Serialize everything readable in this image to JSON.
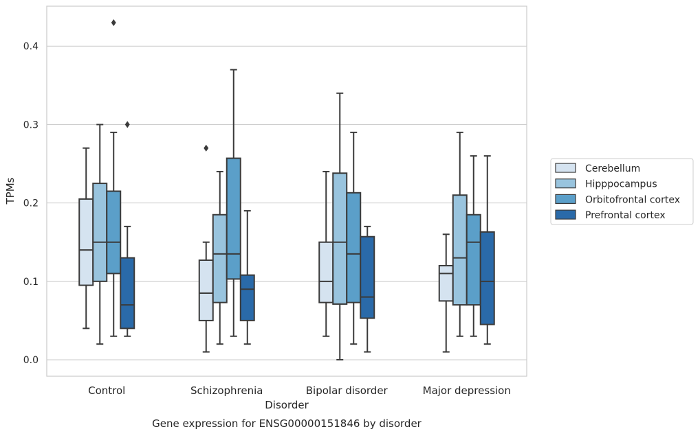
{
  "chart_data": {
    "type": "box",
    "title": "Gene expression for ENSG00000151846 by disorder",
    "xlabel": "Disorder",
    "ylabel": "TPMs",
    "ylim": [
      -0.021,
      0.451
    ],
    "yticks": [
      "0.0",
      "0.1",
      "0.2",
      "0.3",
      "0.4"
    ],
    "ytick_values": [
      0.0,
      0.1,
      0.2,
      0.3,
      0.4
    ],
    "grid": "horizontal",
    "legend_position": "right",
    "categories": [
      "Control",
      "Schizophrenia",
      "Bipolar disorder",
      "Major depression"
    ],
    "series": [
      {
        "name": "Cerebellum",
        "color": "#d5e3f0",
        "boxes": [
          {
            "whisker_low": 0.04,
            "q1": 0.095,
            "median": 0.14,
            "q3": 0.205,
            "whisker_high": 0.27,
            "outliers": []
          },
          {
            "whisker_low": 0.01,
            "q1": 0.05,
            "median": 0.085,
            "q3": 0.127,
            "whisker_high": 0.15,
            "outliers": [
              0.27
            ]
          },
          {
            "whisker_low": 0.03,
            "q1": 0.073,
            "median": 0.1,
            "q3": 0.15,
            "whisker_high": 0.24,
            "outliers": []
          },
          {
            "whisker_low": 0.01,
            "q1": 0.075,
            "median": 0.11,
            "q3": 0.12,
            "whisker_high": 0.16,
            "outliers": []
          }
        ]
      },
      {
        "name": "Hipppocampus",
        "color": "#99c4de",
        "boxes": [
          {
            "whisker_low": 0.02,
            "q1": 0.1,
            "median": 0.15,
            "q3": 0.225,
            "whisker_high": 0.3,
            "outliers": []
          },
          {
            "whisker_low": 0.02,
            "q1": 0.073,
            "median": 0.135,
            "q3": 0.185,
            "whisker_high": 0.24,
            "outliers": []
          },
          {
            "whisker_low": 0.0,
            "q1": 0.071,
            "median": 0.15,
            "q3": 0.238,
            "whisker_high": 0.34,
            "outliers": []
          },
          {
            "whisker_low": 0.03,
            "q1": 0.07,
            "median": 0.13,
            "q3": 0.21,
            "whisker_high": 0.29,
            "outliers": []
          }
        ]
      },
      {
        "name": "Orbitofrontal cortex",
        "color": "#5b9fc9",
        "boxes": [
          {
            "whisker_low": 0.03,
            "q1": 0.11,
            "median": 0.15,
            "q3": 0.215,
            "whisker_high": 0.29,
            "outliers": [
              0.43
            ]
          },
          {
            "whisker_low": 0.03,
            "q1": 0.103,
            "median": 0.135,
            "q3": 0.257,
            "whisker_high": 0.37,
            "outliers": []
          },
          {
            "whisker_low": 0.02,
            "q1": 0.073,
            "median": 0.135,
            "q3": 0.213,
            "whisker_high": 0.29,
            "outliers": []
          },
          {
            "whisker_low": 0.03,
            "q1": 0.07,
            "median": 0.15,
            "q3": 0.185,
            "whisker_high": 0.26,
            "outliers": []
          }
        ]
      },
      {
        "name": "Prefrontal cortex",
        "color": "#2a6aa9",
        "boxes": [
          {
            "whisker_low": 0.03,
            "q1": 0.04,
            "median": 0.07,
            "q3": 0.13,
            "whisker_high": 0.17,
            "outliers": [
              0.3
            ]
          },
          {
            "whisker_low": 0.02,
            "q1": 0.05,
            "median": 0.09,
            "q3": 0.108,
            "whisker_high": 0.19,
            "outliers": []
          },
          {
            "whisker_low": 0.01,
            "q1": 0.053,
            "median": 0.08,
            "q3": 0.157,
            "whisker_high": 0.17,
            "outliers": []
          },
          {
            "whisker_low": 0.02,
            "q1": 0.045,
            "median": 0.1,
            "q3": 0.163,
            "whisker_high": 0.26,
            "outliers": []
          }
        ]
      }
    ]
  }
}
